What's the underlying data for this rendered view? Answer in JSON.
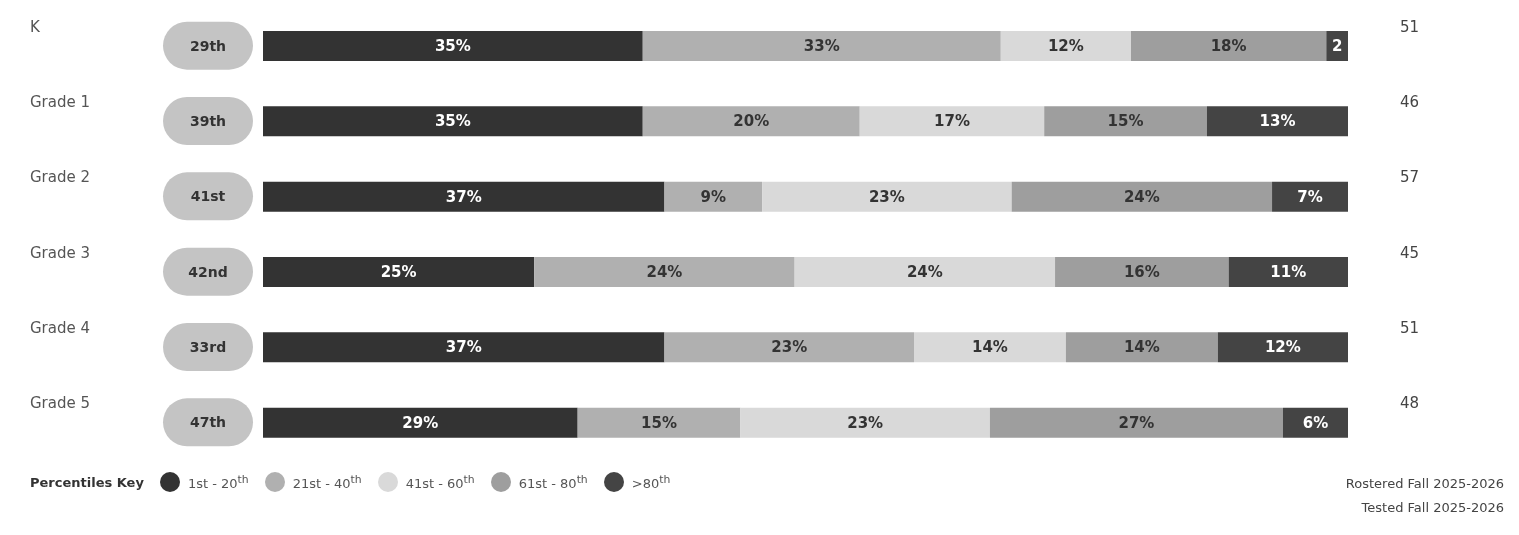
{
  "chart_data": {
    "type": "bar",
    "orientation": "horizontal",
    "stacked": true,
    "categories": [
      "K",
      "Grade 1",
      "Grade 2",
      "Grade 3",
      "Grade 4",
      "Grade 5"
    ],
    "xlim": [
      0,
      100
    ],
    "tick_labels": "y",
    "legend": "bottom left",
    "legend_title": "Percentiles Key",
    "series": [
      {
        "name": "1st - 20$^{th}$",
        "color": "#333333",
        "values": [
          35,
          35,
          37,
          25,
          37,
          29
        ],
        "value_labels": [
          "35%",
          "35%",
          "37%",
          "25%",
          "37%",
          "29%"
        ]
      },
      {
        "name": "21st - 40$^{th}$",
        "color": "#b0b0b0",
        "values": [
          33,
          20,
          9,
          24,
          23,
          15
        ],
        "value_labels": [
          "33%",
          "20%",
          "9%",
          "24%",
          "23%",
          "15%"
        ]
      },
      {
        "name": "41st - 60$^{th}$",
        "color": "#d9d9d9",
        "values": [
          12,
          17,
          23,
          24,
          14,
          23
        ],
        "value_labels": [
          "12%",
          "17%",
          "23%",
          "24%",
          "14%",
          "23%"
        ]
      },
      {
        "name": "61st - 80$^{th}$",
        "color": "#9e9e9e",
        "values": [
          18,
          15,
          24,
          16,
          14,
          27
        ],
        "value_labels": [
          "18%",
          "15%",
          "24%",
          "16%",
          "14%",
          "27%"
        ]
      },
      {
        "name": ">80$^{th}$",
        "color": "#444444",
        "values": [
          2,
          13,
          7,
          11,
          12,
          6
        ],
        "value_labels": [
          "2",
          "13%",
          "7%",
          "11%",
          "12%",
          "6%"
        ]
      }
    ],
    "annotations": [
      "29th",
      "51",
      "39th",
      "46",
      "41st",
      "57",
      "42nd",
      "45",
      "33rd",
      "51",
      "47th",
      "48",
      "Rostered Fall 2025-2026",
      "Tested Fall 2025-2026"
    ]
  }
}
